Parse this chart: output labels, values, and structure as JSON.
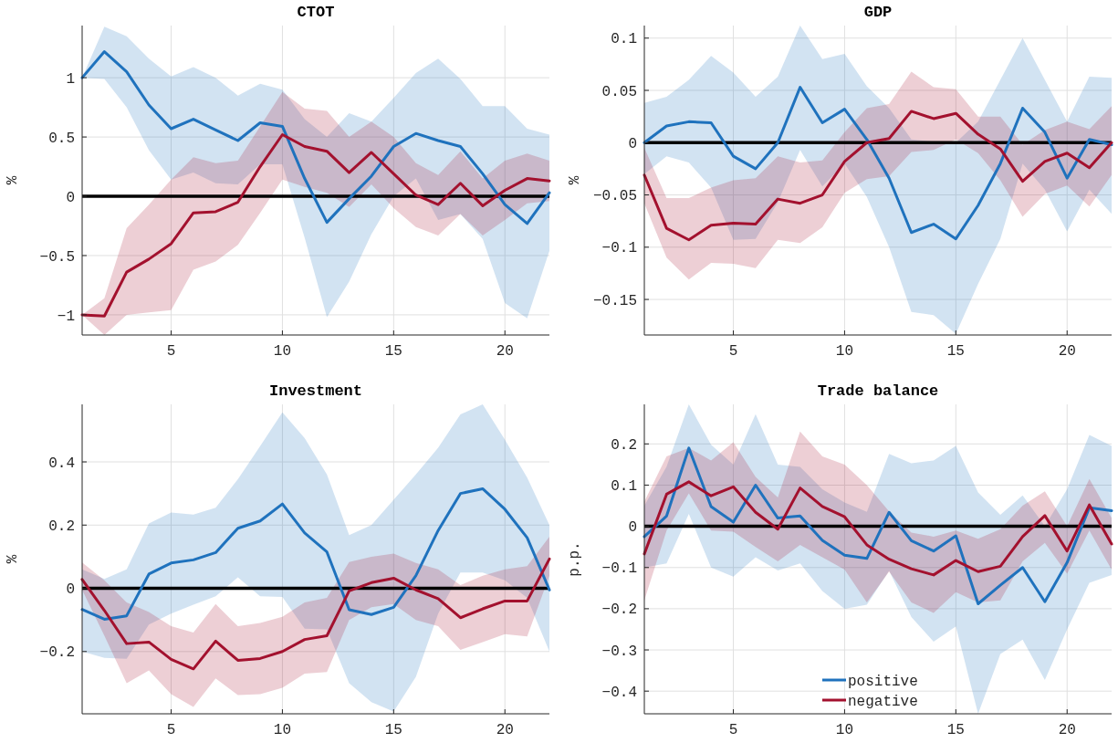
{
  "chart_data": [
    {
      "type": "line",
      "title": "CTOT",
      "ylabel": "%",
      "x": [
        1,
        2,
        3,
        4,
        5,
        6,
        7,
        8,
        9,
        10,
        11,
        12,
        13,
        14,
        15,
        16,
        17,
        18,
        19,
        20,
        21,
        22
      ],
      "xlim": [
        1,
        22
      ],
      "xticks": [
        5,
        10,
        15,
        20
      ],
      "ylim": [
        -1.17,
        1.44
      ],
      "yticks": [
        -1,
        -0.5,
        0,
        0.5,
        1
      ],
      "grid": true,
      "legend": false,
      "ref_lines": [
        {
          "axis": "y",
          "value": 0,
          "color": "#000000"
        }
      ],
      "series": [
        {
          "color": "#1f72bd",
          "values": [
            1.0,
            1.22,
            1.05,
            0.77,
            0.57,
            0.65,
            0.56,
            0.47,
            0.62,
            0.59,
            0.15,
            -0.22,
            -0.02,
            0.17,
            0.42,
            0.53,
            0.47,
            0.42,
            0.19,
            -0.07,
            -0.23,
            0.03
          ],
          "upper": [
            1.0,
            1.43,
            1.35,
            1.16,
            1.01,
            1.09,
            1.0,
            0.85,
            0.95,
            0.9,
            0.65,
            0.5,
            0.7,
            0.63,
            0.83,
            1.04,
            1.16,
            0.99,
            0.76,
            0.76,
            0.57,
            0.52
          ],
          "lower": [
            1.0,
            0.99,
            0.75,
            0.39,
            0.14,
            0.2,
            0.11,
            0.1,
            0.27,
            0.27,
            -0.35,
            -1.02,
            -0.72,
            -0.32,
            0.0,
            0.15,
            -0.2,
            -0.15,
            -0.36,
            -0.9,
            -1.03,
            -0.46
          ]
        },
        {
          "color": "#a3112e",
          "values": [
            -1.0,
            -1.01,
            -0.64,
            -0.53,
            -0.4,
            -0.14,
            -0.13,
            -0.05,
            0.25,
            0.52,
            0.42,
            0.38,
            0.2,
            0.37,
            0.19,
            0.01,
            -0.07,
            0.11,
            -0.08,
            0.05,
            0.15,
            0.13
          ],
          "upper": [
            -1.0,
            -0.86,
            -0.27,
            -0.07,
            0.14,
            0.33,
            0.28,
            0.3,
            0.59,
            0.88,
            0.74,
            0.72,
            0.5,
            0.63,
            0.5,
            0.28,
            0.18,
            0.38,
            0.15,
            0.3,
            0.36,
            0.3
          ],
          "lower": [
            -1.0,
            -1.17,
            -1.0,
            -0.98,
            -0.96,
            -0.62,
            -0.55,
            -0.41,
            -0.14,
            0.14,
            0.08,
            0.03,
            -0.09,
            0.1,
            -0.1,
            -0.26,
            -0.33,
            -0.15,
            -0.33,
            -0.2,
            -0.06,
            -0.04
          ]
        }
      ]
    },
    {
      "type": "line",
      "title": "GDP",
      "ylabel": "%",
      "x": [
        1,
        2,
        3,
        4,
        5,
        6,
        7,
        8,
        9,
        10,
        11,
        12,
        13,
        14,
        15,
        16,
        17,
        18,
        19,
        20,
        21,
        22
      ],
      "xlim": [
        1,
        22
      ],
      "xticks": [
        5,
        10,
        15,
        20
      ],
      "ylim": [
        -0.184,
        0.112
      ],
      "yticks": [
        -0.15,
        -0.1,
        -0.05,
        0,
        0.05,
        0.1
      ],
      "grid": true,
      "legend": false,
      "ref_lines": [
        {
          "axis": "y",
          "value": 0,
          "color": "#000000"
        }
      ],
      "series": [
        {
          "color": "#1f72bd",
          "values": [
            0.0,
            0.016,
            0.02,
            0.019,
            -0.013,
            -0.025,
            0.0,
            0.053,
            0.019,
            0.032,
            0.003,
            -0.034,
            -0.086,
            -0.078,
            -0.092,
            -0.06,
            -0.02,
            0.033,
            0.01,
            -0.034,
            0.003,
            -0.002
          ],
          "upper": [
            0.038,
            0.044,
            0.06,
            0.083,
            0.067,
            0.044,
            0.063,
            0.112,
            0.08,
            0.085,
            0.054,
            0.033,
            0.003,
            0.001,
            0.0,
            0.02,
            0.06,
            0.1,
            0.06,
            0.02,
            0.063,
            0.062
          ],
          "lower": [
            -0.03,
            -0.013,
            -0.019,
            -0.043,
            -0.093,
            -0.092,
            -0.057,
            -0.007,
            -0.042,
            -0.02,
            -0.052,
            -0.1,
            -0.162,
            -0.165,
            -0.183,
            -0.135,
            -0.092,
            -0.02,
            -0.045,
            -0.085,
            -0.045,
            -0.068
          ]
        },
        {
          "color": "#a3112e",
          "values": [
            -0.031,
            -0.082,
            -0.093,
            -0.079,
            -0.077,
            -0.078,
            -0.054,
            -0.058,
            -0.05,
            -0.018,
            0.0,
            0.004,
            0.03,
            0.023,
            0.028,
            0.008,
            -0.006,
            -0.037,
            -0.018,
            -0.01,
            -0.024,
            0.0
          ],
          "upper": [
            -0.005,
            -0.053,
            -0.053,
            -0.043,
            -0.036,
            -0.034,
            -0.013,
            -0.019,
            -0.017,
            0.01,
            0.033,
            0.037,
            0.068,
            0.053,
            0.051,
            0.025,
            0.025,
            -0.002,
            0.012,
            0.02,
            0.013,
            0.035
          ],
          "lower": [
            -0.058,
            -0.11,
            -0.131,
            -0.115,
            -0.116,
            -0.12,
            -0.093,
            -0.096,
            -0.081,
            -0.048,
            -0.035,
            -0.032,
            -0.009,
            -0.007,
            0.003,
            -0.01,
            -0.036,
            -0.071,
            -0.049,
            -0.041,
            -0.061,
            -0.031
          ]
        }
      ]
    },
    {
      "type": "line",
      "title": "Investment",
      "ylabel": "%",
      "x": [
        1,
        2,
        3,
        4,
        5,
        6,
        7,
        8,
        9,
        10,
        11,
        12,
        13,
        14,
        15,
        16,
        17,
        18,
        19,
        20,
        21,
        22
      ],
      "xlim": [
        1,
        22
      ],
      "xticks": [
        5,
        10,
        15,
        20
      ],
      "ylim": [
        -0.397,
        0.582
      ],
      "yticks": [
        -0.2,
        0,
        0.2,
        0.4
      ],
      "grid": true,
      "legend": false,
      "ref_lines": [
        {
          "axis": "y",
          "value": 0,
          "color": "#000000"
        }
      ],
      "series": [
        {
          "color": "#1f72bd",
          "values": [
            -0.067,
            -0.098,
            -0.087,
            0.045,
            0.08,
            0.09,
            0.113,
            0.19,
            0.213,
            0.267,
            0.175,
            0.115,
            -0.068,
            -0.083,
            -0.06,
            0.04,
            0.183,
            0.3,
            0.315,
            0.25,
            0.16,
            -0.005
          ],
          "upper": [
            0.06,
            0.03,
            0.06,
            0.205,
            0.24,
            0.233,
            0.255,
            0.345,
            0.45,
            0.557,
            0.475,
            0.36,
            0.168,
            0.2,
            0.28,
            0.36,
            0.445,
            0.55,
            0.582,
            0.47,
            0.35,
            0.2
          ],
          "lower": [
            -0.2,
            -0.22,
            -0.223,
            -0.115,
            -0.08,
            -0.052,
            -0.025,
            0.035,
            -0.025,
            -0.027,
            -0.128,
            -0.13,
            -0.3,
            -0.36,
            -0.39,
            -0.28,
            -0.08,
            0.05,
            0.05,
            0.025,
            -0.03,
            -0.2
          ]
        },
        {
          "color": "#a3112e",
          "values": [
            0.028,
            -0.07,
            -0.175,
            -0.17,
            -0.225,
            -0.255,
            -0.167,
            -0.228,
            -0.222,
            -0.2,
            -0.162,
            -0.15,
            -0.008,
            0.018,
            0.032,
            -0.005,
            -0.033,
            -0.093,
            -0.065,
            -0.04,
            -0.04,
            0.093
          ],
          "upper": [
            0.082,
            0.025,
            -0.045,
            -0.075,
            -0.12,
            -0.14,
            -0.05,
            -0.12,
            -0.11,
            -0.09,
            -0.045,
            -0.03,
            0.083,
            0.1,
            0.11,
            0.08,
            0.06,
            0.01,
            0.04,
            0.06,
            0.07,
            0.163
          ],
          "lower": [
            -0.005,
            -0.15,
            -0.3,
            -0.26,
            -0.335,
            -0.375,
            -0.285,
            -0.338,
            -0.335,
            -0.315,
            -0.27,
            -0.265,
            -0.1,
            -0.06,
            -0.05,
            -0.1,
            -0.12,
            -0.195,
            -0.17,
            -0.145,
            -0.152,
            0.04
          ]
        }
      ]
    },
    {
      "type": "line",
      "title": "Trade balance",
      "ylabel": "p.p.",
      "x": [
        1,
        2,
        3,
        4,
        5,
        6,
        7,
        8,
        9,
        10,
        11,
        12,
        13,
        14,
        15,
        16,
        17,
        18,
        19,
        20,
        21,
        22
      ],
      "xlim": [
        1,
        22
      ],
      "xticks": [
        5,
        10,
        15,
        20
      ],
      "ylim": [
        -0.455,
        0.296
      ],
      "yticks": [
        -0.4,
        -0.3,
        -0.2,
        -0.1,
        0,
        0.1,
        0.2
      ],
      "grid": true,
      "legend": "bottom",
      "ref_lines": [
        {
          "axis": "y",
          "value": 0,
          "color": "#000000"
        }
      ],
      "series": [
        {
          "name": "positive",
          "color": "#1f72bd",
          "values": [
            -0.025,
            0.025,
            0.19,
            0.048,
            0.01,
            0.1,
            0.02,
            0.025,
            -0.034,
            -0.07,
            -0.078,
            0.034,
            -0.035,
            -0.06,
            -0.023,
            -0.188,
            -0.143,
            -0.1,
            -0.183,
            -0.088,
            0.045,
            0.038
          ],
          "upper": [
            0.05,
            0.145,
            0.296,
            0.198,
            0.15,
            0.272,
            0.15,
            0.144,
            0.09,
            0.058,
            0.035,
            0.176,
            0.153,
            0.16,
            0.195,
            0.082,
            0.028,
            0.075,
            0.0,
            0.09,
            0.222,
            0.195
          ],
          "lower": [
            -0.1,
            -0.09,
            0.03,
            -0.1,
            -0.122,
            -0.075,
            -0.107,
            -0.09,
            -0.157,
            -0.2,
            -0.19,
            -0.108,
            -0.22,
            -0.28,
            -0.243,
            -0.455,
            -0.31,
            -0.275,
            -0.373,
            -0.25,
            -0.137,
            -0.118
          ]
        },
        {
          "name": "negative",
          "color": "#a3112e",
          "values": [
            -0.067,
            0.078,
            0.108,
            0.074,
            0.096,
            0.034,
            -0.007,
            0.093,
            0.048,
            0.023,
            -0.045,
            -0.08,
            -0.103,
            -0.118,
            -0.083,
            -0.11,
            -0.097,
            -0.025,
            0.026,
            -0.06,
            0.052,
            -0.043
          ],
          "upper": [
            0.06,
            0.17,
            0.19,
            0.16,
            0.204,
            0.12,
            0.07,
            0.23,
            0.17,
            0.15,
            0.1,
            0.036,
            -0.015,
            -0.025,
            -0.01,
            -0.03,
            -0.007,
            0.05,
            0.085,
            0.0,
            0.115,
            0.02
          ],
          "lower": [
            -0.18,
            -0.01,
            0.08,
            -0.01,
            -0.013,
            -0.05,
            -0.085,
            -0.045,
            -0.075,
            -0.105,
            -0.185,
            -0.11,
            -0.185,
            -0.21,
            -0.16,
            -0.185,
            -0.18,
            -0.085,
            -0.04,
            -0.115,
            -0.01,
            -0.105
          ]
        }
      ]
    }
  ]
}
